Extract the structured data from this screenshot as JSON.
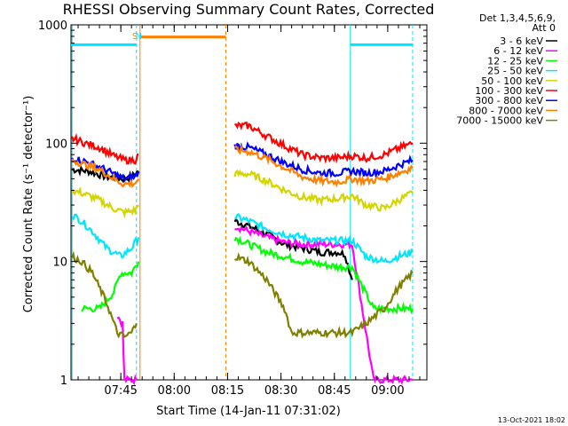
{
  "chart_data": {
    "type": "line",
    "title": "RHESSI Observing Summary Count Rates, Corrected",
    "xlabel": "Start Time (14-Jan-11 07:31:02)",
    "ylabel": "Corrected Count Rate (s⁻¹ detector⁻¹)",
    "yscale": "log",
    "ylim": [
      1,
      1000
    ],
    "xlim_minutes": [
      0,
      100
    ],
    "x_ticks": [
      {
        "t": 14,
        "label": "07:45"
      },
      {
        "t": 29,
        "label": "08:00"
      },
      {
        "t": 44,
        "label": "08:15"
      },
      {
        "t": 59,
        "label": "08:30"
      },
      {
        "t": 74,
        "label": "08:45"
      },
      {
        "t": 89,
        "label": "09:00"
      }
    ],
    "y_ticks": [
      {
        "v": 1,
        "label": "1"
      },
      {
        "v": 10,
        "label": "10"
      },
      {
        "v": 100,
        "label": "100"
      },
      {
        "v": 1000,
        "label": "1000"
      }
    ],
    "legend": {
      "header": [
        "Det 1,3,4,5,6,9,",
        "Att 0"
      ],
      "position": "right"
    },
    "markers": [
      {
        "label": "S",
        "t": 18.0,
        "color": "#ff8000"
      },
      {
        "label": "N",
        "t": 19.0,
        "color": "#00e5ff"
      }
    ],
    "flags": [
      {
        "name": "night",
        "t0": 0,
        "t1": 18.4,
        "y": 680,
        "color": "#00e5ff"
      },
      {
        "name": "saa",
        "t0": 19.4,
        "t1": 43.5,
        "y": 790,
        "color": "#ff8000"
      },
      {
        "name": "night",
        "t0": 78.5,
        "t1": 96.0,
        "y": 680,
        "color": "#00e5ff"
      }
    ],
    "vlines": [
      {
        "t": 0.3,
        "color": "#00e5ff",
        "style": "solid"
      },
      {
        "t": 18.4,
        "color": "#00e5ff",
        "style": "dashed"
      },
      {
        "t": 19.4,
        "color": "#ff8000",
        "style": "solid"
      },
      {
        "t": 43.5,
        "color": "#ff8000",
        "style": "dashed"
      },
      {
        "t": 78.5,
        "color": "#00e5ff",
        "style": "solid"
      },
      {
        "t": 96.0,
        "color": "#00e5ff",
        "style": "dashed"
      }
    ],
    "series": [
      {
        "name": "3 - 6 keV",
        "color": "#000000",
        "segments": [
          {
            "t": [
              0.3,
              5,
              10,
              15,
              17,
              19
            ],
            "v": [
              60,
              58,
              52,
              50,
              52,
              58
            ]
          },
          {
            "t": [
              46,
              50,
              55,
              60,
              65,
              70,
              75,
              77,
              79
            ],
            "v": [
              22,
              20,
              17,
              14,
              13,
              12,
              12,
              11.5,
              7
            ]
          }
        ]
      },
      {
        "name": "6 - 12 keV",
        "color": "#ff00ff",
        "segments": [
          {
            "t": [
              13,
              14.5,
              15,
              17,
              18.4
            ],
            "v": [
              3.5,
              3,
              1,
              1,
              1
            ]
          },
          {
            "t": [
              46,
              50,
              55,
              60,
              65,
              70,
              75,
              79,
              85,
              90,
              96
            ],
            "v": [
              20,
              18,
              16,
              14.5,
              14,
              14,
              14,
              14,
              1,
              1,
              1
            ]
          }
        ]
      },
      {
        "name": "12 - 25 keV",
        "color": "#00ff00",
        "segments": [
          {
            "t": [
              3,
              8,
              12,
              14,
              17,
              19
            ],
            "v": [
              4,
              4,
              5.5,
              8,
              8,
              10
            ]
          },
          {
            "t": [
              46,
              50,
              55,
              60,
              65,
              70,
              75,
              79,
              85,
              90,
              96
            ],
            "v": [
              16,
              14,
              12,
              11,
              10,
              9.5,
              9,
              9,
              4,
              4,
              4
            ]
          }
        ]
      },
      {
        "name": "25 - 50 keV",
        "color": "#00e5ff",
        "segments": [
          {
            "t": [
              0.3,
              3,
              6,
              10,
              14,
              17,
              19
            ],
            "v": [
              25,
              22,
              18,
              13,
              11,
              13,
              16
            ]
          },
          {
            "t": [
              46,
              50,
              55,
              60,
              65,
              70,
              75,
              79,
              83,
              88,
              92,
              96
            ],
            "v": [
              24,
              22,
              19,
              17,
              16,
              15,
              15,
              15,
              11,
              10,
              11,
              12
            ]
          }
        ]
      },
      {
        "name": "50 - 100 keV",
        "color": "#d4d400",
        "segments": [
          {
            "t": [
              0.3,
              4,
              8,
              12,
              15,
              18,
              19
            ],
            "v": [
              40,
              37,
              33,
              28,
              26,
              27,
              30
            ]
          },
          {
            "t": [
              46,
              50,
              55,
              60,
              65,
              70,
              75,
              79,
              83,
              88,
              92,
              96
            ],
            "v": [
              55,
              55,
              48,
              40,
              35,
              33,
              34,
              36,
              30,
              28,
              33,
              38
            ]
          }
        ]
      },
      {
        "name": "100 - 300 keV",
        "color": "#ff0000",
        "segments": [
          {
            "t": [
              0.3,
              4,
              8,
              12,
              15,
              18,
              19
            ],
            "v": [
              110,
              100,
              92,
              78,
              72,
              72,
              80
            ]
          },
          {
            "t": [
              46,
              50,
              55,
              60,
              65,
              70,
              75,
              79,
              83,
              88,
              92,
              96
            ],
            "v": [
              140,
              140,
              115,
              95,
              80,
              75,
              75,
              78,
              75,
              80,
              90,
              100
            ]
          }
        ]
      },
      {
        "name": "300 - 800 keV",
        "color": "#0000ff",
        "segments": [
          {
            "t": [
              0.3,
              4,
              8,
              12,
              15,
              18,
              19
            ],
            "v": [
              75,
              70,
              63,
              55,
              50,
              52,
              58
            ]
          },
          {
            "t": [
              46,
              50,
              55,
              60,
              65,
              70,
              75,
              79,
              83,
              88,
              92,
              96
            ],
            "v": [
              95,
              92,
              80,
              68,
              60,
              56,
              56,
              58,
              56,
              58,
              65,
              72
            ]
          }
        ]
      },
      {
        "name": "800 - 7000 keV",
        "color": "#ff8000",
        "segments": [
          {
            "t": [
              0.3,
              4,
              8,
              12,
              15,
              18,
              19
            ],
            "v": [
              72,
              66,
              60,
              50,
              45,
              46,
              50
            ]
          },
          {
            "t": [
              46,
              50,
              55,
              60,
              65,
              70,
              75,
              79,
              83,
              88,
              92,
              96
            ],
            "v": [
              88,
              85,
              74,
              62,
              52,
              48,
              47,
              50,
              48,
              50,
              56,
              62
            ]
          }
        ]
      },
      {
        "name": "7000 - 15000 keV",
        "color": "#808000",
        "segments": [
          {
            "t": [
              0.3,
              3,
              6,
              10,
              13,
              15,
              17,
              18.4
            ],
            "v": [
              11,
              10,
              8,
              4.5,
              2.5,
              2.3,
              2.5,
              3
            ]
          },
          {
            "t": [
              46,
              50,
              55,
              60,
              62,
              65,
              70,
              75,
              79,
              83,
              88,
              92,
              96
            ],
            "v": [
              11,
              10,
              7,
              4,
              2.5,
              2.5,
              2.5,
              2.5,
              2.5,
              3,
              4,
              6,
              8
            ]
          }
        ]
      }
    ]
  },
  "footer": {
    "timestamp": "13-Oct-2021 18:02"
  }
}
